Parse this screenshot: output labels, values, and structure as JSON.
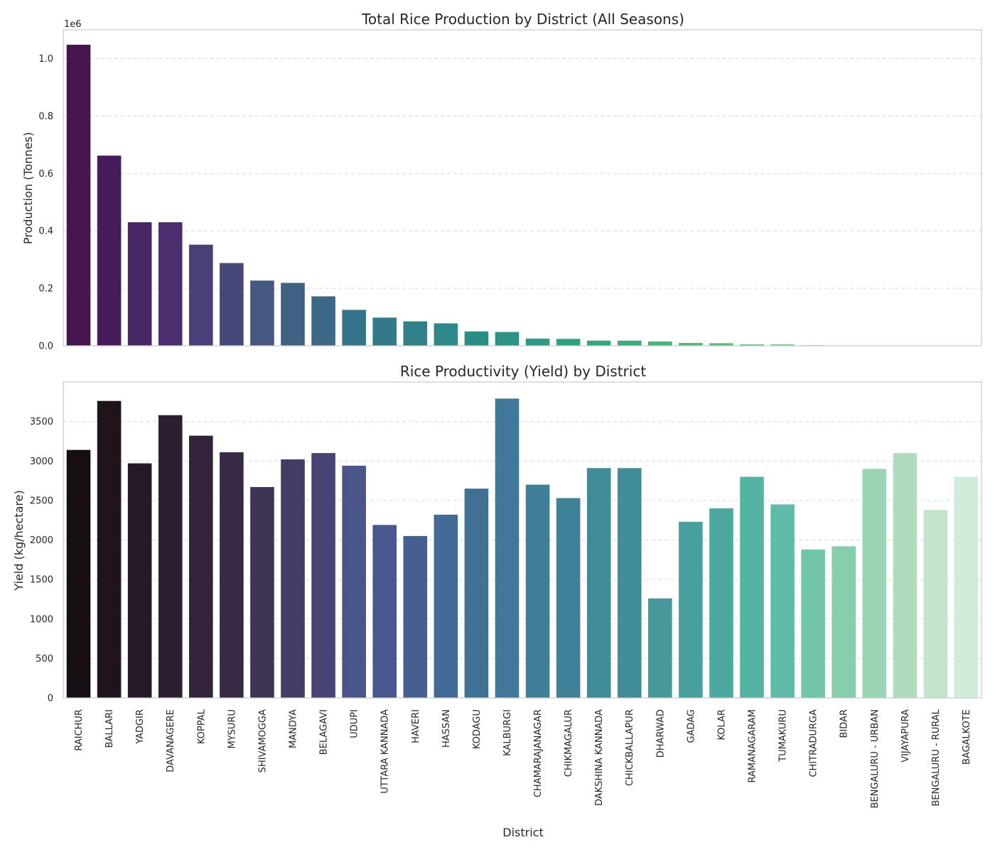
{
  "chart_data": [
    {
      "type": "bar",
      "title": "Total Rice Production by District (All Seasons)",
      "xlabel": "",
      "ylabel": "Production (Tonnes)",
      "y_offset_label": "1e6",
      "ylim": [
        0,
        1.1
      ],
      "yticks": [
        "0.0",
        "0.2",
        "0.4",
        "0.6",
        "0.8",
        "1.0"
      ],
      "grid": true,
      "categories": [
        "RAICHUR",
        "BALLARI",
        "YADGIR",
        "DAVANAGERE",
        "KOPPAL",
        "MYSURU",
        "SHIVAMOGGA",
        "MANDYA",
        "BELAGAVI",
        "UDUPI",
        "UTTARA KANNADA",
        "HAVERI",
        "HASSAN",
        "KODAGU",
        "KALBURGI",
        "CHAMARAJANAGAR",
        "CHIKMAGALUR",
        "DAKSHINA KANNADA",
        "CHICKBALLAPUR",
        "DHARWAD",
        "GADAG",
        "KOLAR",
        "RAMANAGARAM",
        "TUMAKURU",
        "CHITRADURGA",
        "BIDAR",
        "BENGALURU - URBAN",
        "VIJAYAPURA",
        "BENGALURU - RURAL",
        "BAGALKOTE"
      ],
      "values": [
        1.048,
        0.662,
        0.43,
        0.43,
        0.352,
        0.288,
        0.227,
        0.219,
        0.172,
        0.125,
        0.098,
        0.085,
        0.078,
        0.05,
        0.048,
        0.025,
        0.024,
        0.018,
        0.018,
        0.015,
        0.01,
        0.009,
        0.005,
        0.005,
        0.002,
        0.001,
        0.001,
        0.001,
        0.0005,
        0.0005
      ],
      "colors": [
        "#45154f",
        "#471c5c",
        "#492766",
        "#4a2e6d",
        "#4a3f76",
        "#47487a",
        "#455880",
        "#3f6283",
        "#3c6987",
        "#35738a",
        "#33798a",
        "#31808a",
        "#2e8788",
        "#2a8d86",
        "#2d9385",
        "#2f9983",
        "#30a081",
        "#36a67e",
        "#3eac7c",
        "#49b27a",
        "#56b87a",
        "#5dbe7a",
        "#6bc37b",
        "#76c97e",
        "#80cd84",
        "#8ad18a",
        "#96d693",
        "#a2db9d",
        "#b0e1a8",
        "#bde6b4"
      ]
    },
    {
      "type": "bar",
      "title": "Rice Productivity (Yield) by District",
      "xlabel": "District",
      "ylabel": "Yield (kg/hectare)",
      "ylim": [
        0,
        4000
      ],
      "yticks": [
        "0",
        "500",
        "1000",
        "1500",
        "2000",
        "2500",
        "3000",
        "3500"
      ],
      "grid": true,
      "categories": [
        "RAICHUR",
        "BALLARI",
        "YADGIR",
        "DAVANAGERE",
        "KOPPAL",
        "MYSURU",
        "SHIVAMOGGA",
        "MANDYA",
        "BELAGAVI",
        "UDUPI",
        "UTTARA KANNADA",
        "HAVERI",
        "HASSAN",
        "KODAGU",
        "KALBURGI",
        "CHAMARAJANAGAR",
        "CHIKMAGALUR",
        "DAKSHINA KANNADA",
        "CHICKBALLAPUR",
        "DHARWAD",
        "GADAG",
        "KOLAR",
        "RAMANAGARAM",
        "TUMAKURU",
        "CHITRADURGA",
        "BIDAR",
        "BENGALURU - URBAN",
        "VIJAYAPURA",
        "BENGALURU - RURAL",
        "BAGALKOTE"
      ],
      "values": [
        3140,
        3760,
        2970,
        3580,
        3320,
        3110,
        2670,
        3020,
        3100,
        2940,
        2190,
        2050,
        2320,
        2650,
        3790,
        2700,
        2530,
        2910,
        2910,
        1260,
        2230,
        2400,
        2800,
        2450,
        1880,
        1920,
        2900,
        3100,
        2380,
        2800
      ],
      "colors": [
        "#170d14",
        "#1f131c",
        "#261a28",
        "#2c1f32",
        "#32233b",
        "#382944",
        "#3d3456",
        "#433d65",
        "#464474",
        "#4a558a",
        "#48588e",
        "#455f91",
        "#426a95",
        "#407296",
        "#3f7899",
        "#3f8098",
        "#3f8297",
        "#408b98",
        "#418d98",
        "#46989a",
        "#47a09d",
        "#4da8a0",
        "#55b3a4",
        "#60bba8",
        "#71c6aa",
        "#86ceac",
        "#99d5b2",
        "#aedcbd",
        "#c1e4ca",
        "#d0ebda"
      ]
    }
  ]
}
